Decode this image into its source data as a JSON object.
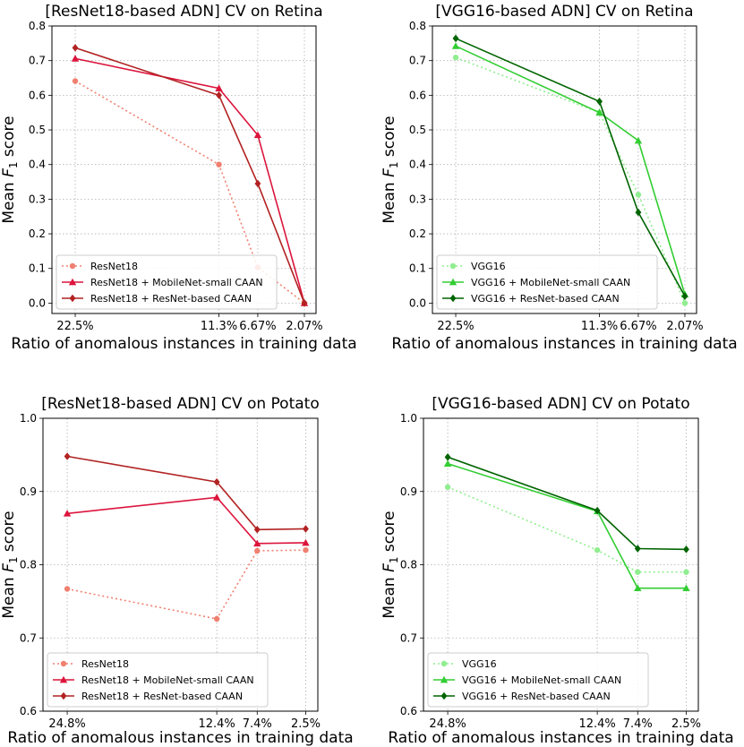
{
  "chart_data": [
    {
      "type": "line",
      "title": "[ResNet18-based ADN] CV on Retina",
      "xlabel": "Ratio of anomalous instances in training data",
      "ylabel_prefix": "Mean ",
      "ylabel_var": "F",
      "ylabel_sub": "1",
      "ylabel_suffix": " score",
      "ylim": [
        -0.03,
        0.8
      ],
      "yticks": [
        0.0,
        0.1,
        0.2,
        0.3,
        0.4,
        0.5,
        0.6,
        0.7,
        0.8
      ],
      "ytick_labels": [
        "0.0",
        "0.1",
        "0.2",
        "0.3",
        "0.4",
        "0.5",
        "0.6",
        "0.7",
        "0.8"
      ],
      "xlim": [
        -0.3,
        3.1
      ],
      "x": [
        0.0,
        1.85,
        2.35,
        2.95
      ],
      "xtick_labels": [
        "22.5%",
        "11.3%",
        "6.67%",
        "2.07%"
      ],
      "grid": true,
      "legend_position": "lower-left",
      "series": [
        {
          "name": "ResNet18",
          "values": [
            0.641,
            0.4,
            0.103,
            0.0
          ],
          "color": "#f08070",
          "dash": "2,3",
          "marker": "circle"
        },
        {
          "name": "ResNet18 + MobileNet-small CAAN",
          "values": [
            0.706,
            0.62,
            0.485,
            0.0
          ],
          "color": "#dc143c",
          "dash": "",
          "marker": "triangle"
        },
        {
          "name": "ResNet18 + ResNet-based CAAN",
          "values": [
            0.737,
            0.6,
            0.345,
            0.0
          ],
          "color": "#b22222",
          "dash": "",
          "marker": "diamond"
        }
      ]
    },
    {
      "type": "line",
      "title": "[VGG16-based ADN] CV on Retina",
      "xlabel": "Ratio of anomalous instances in training data",
      "ylabel_prefix": "Mean ",
      "ylabel_var": "F",
      "ylabel_sub": "1",
      "ylabel_suffix": " score",
      "ylim": [
        -0.03,
        0.8
      ],
      "yticks": [
        0.0,
        0.1,
        0.2,
        0.3,
        0.4,
        0.5,
        0.6,
        0.7,
        0.8
      ],
      "ytick_labels": [
        "0.0",
        "0.1",
        "0.2",
        "0.3",
        "0.4",
        "0.5",
        "0.6",
        "0.7",
        "0.8"
      ],
      "xlim": [
        -0.3,
        3.1
      ],
      "x": [
        0.0,
        1.85,
        2.35,
        2.95
      ],
      "xtick_labels": [
        "22.5%",
        "11.3%",
        "6.67%",
        "2.07%"
      ],
      "grid": true,
      "legend_position": "lower-left",
      "series": [
        {
          "name": "VGG16",
          "values": [
            0.709,
            0.55,
            0.313,
            0.0
          ],
          "color": "#90ee90",
          "dash": "2,3",
          "marker": "circle"
        },
        {
          "name": "VGG16 + MobileNet-small CAAN",
          "values": [
            0.742,
            0.55,
            0.469,
            0.025
          ],
          "color": "#32cd32",
          "dash": "",
          "marker": "triangle"
        },
        {
          "name": "VGG16 + ResNet-based CAAN",
          "values": [
            0.764,
            0.582,
            0.262,
            0.02
          ],
          "color": "#006400",
          "dash": "",
          "marker": "diamond"
        }
      ]
    },
    {
      "type": "line",
      "title": "[ResNet18-based ADN] CV on Potato",
      "xlabel": "Ratio of anomalous instances in training data",
      "ylabel_prefix": "Mean ",
      "ylabel_var": "F",
      "ylabel_sub": "1",
      "ylabel_suffix": " score",
      "ylim": [
        0.6,
        1.0
      ],
      "yticks": [
        0.6,
        0.7,
        0.8,
        0.9,
        1.0
      ],
      "ytick_labels": [
        "0.6",
        "0.7",
        "0.8",
        "0.9",
        "1.0"
      ],
      "xlim": [
        -0.3,
        3.1
      ],
      "x": [
        0.0,
        1.85,
        2.35,
        2.95
      ],
      "xtick_labels": [
        "24.8%",
        "12.4%",
        "7.4%",
        "2.5%"
      ],
      "grid": true,
      "legend_position": "lower-left",
      "series": [
        {
          "name": "ResNet18",
          "values": [
            0.767,
            0.726,
            0.819,
            0.82
          ],
          "color": "#f08070",
          "dash": "2,3",
          "marker": "circle"
        },
        {
          "name": "ResNet18 + MobileNet-small CAAN",
          "values": [
            0.87,
            0.892,
            0.829,
            0.83
          ],
          "color": "#dc143c",
          "dash": "",
          "marker": "triangle"
        },
        {
          "name": "ResNet18 + ResNet-based CAAN",
          "values": [
            0.948,
            0.913,
            0.848,
            0.849
          ],
          "color": "#b22222",
          "dash": "",
          "marker": "diamond"
        }
      ]
    },
    {
      "type": "line",
      "title": "[VGG16-based ADN] CV on Potato",
      "xlabel": "Ratio of anomalous instances in training data",
      "ylabel_prefix": "Mean ",
      "ylabel_var": "F",
      "ylabel_sub": "1",
      "ylabel_suffix": " score",
      "ylim": [
        0.6,
        1.0
      ],
      "yticks": [
        0.6,
        0.7,
        0.8,
        0.9,
        1.0
      ],
      "ytick_labels": [
        "0.6",
        "0.7",
        "0.8",
        "0.9",
        "1.0"
      ],
      "xlim": [
        -0.3,
        3.1
      ],
      "x": [
        0.0,
        1.85,
        2.35,
        2.95
      ],
      "xtick_labels": [
        "24.8%",
        "12.4%",
        "7.4%",
        "2.5%"
      ],
      "grid": true,
      "legend_position": "lower-left",
      "series": [
        {
          "name": "VGG16",
          "values": [
            0.906,
            0.82,
            0.79,
            0.79
          ],
          "color": "#90ee90",
          "dash": "2,3",
          "marker": "circle"
        },
        {
          "name": "VGG16 + MobileNet-small CAAN",
          "values": [
            0.938,
            0.873,
            0.768,
            0.768
          ],
          "color": "#32cd32",
          "dash": "",
          "marker": "triangle"
        },
        {
          "name": "VGG16 + ResNet-based CAAN",
          "values": [
            0.947,
            0.874,
            0.822,
            0.821
          ],
          "color": "#006400",
          "dash": "",
          "marker": "diamond"
        }
      ]
    }
  ]
}
